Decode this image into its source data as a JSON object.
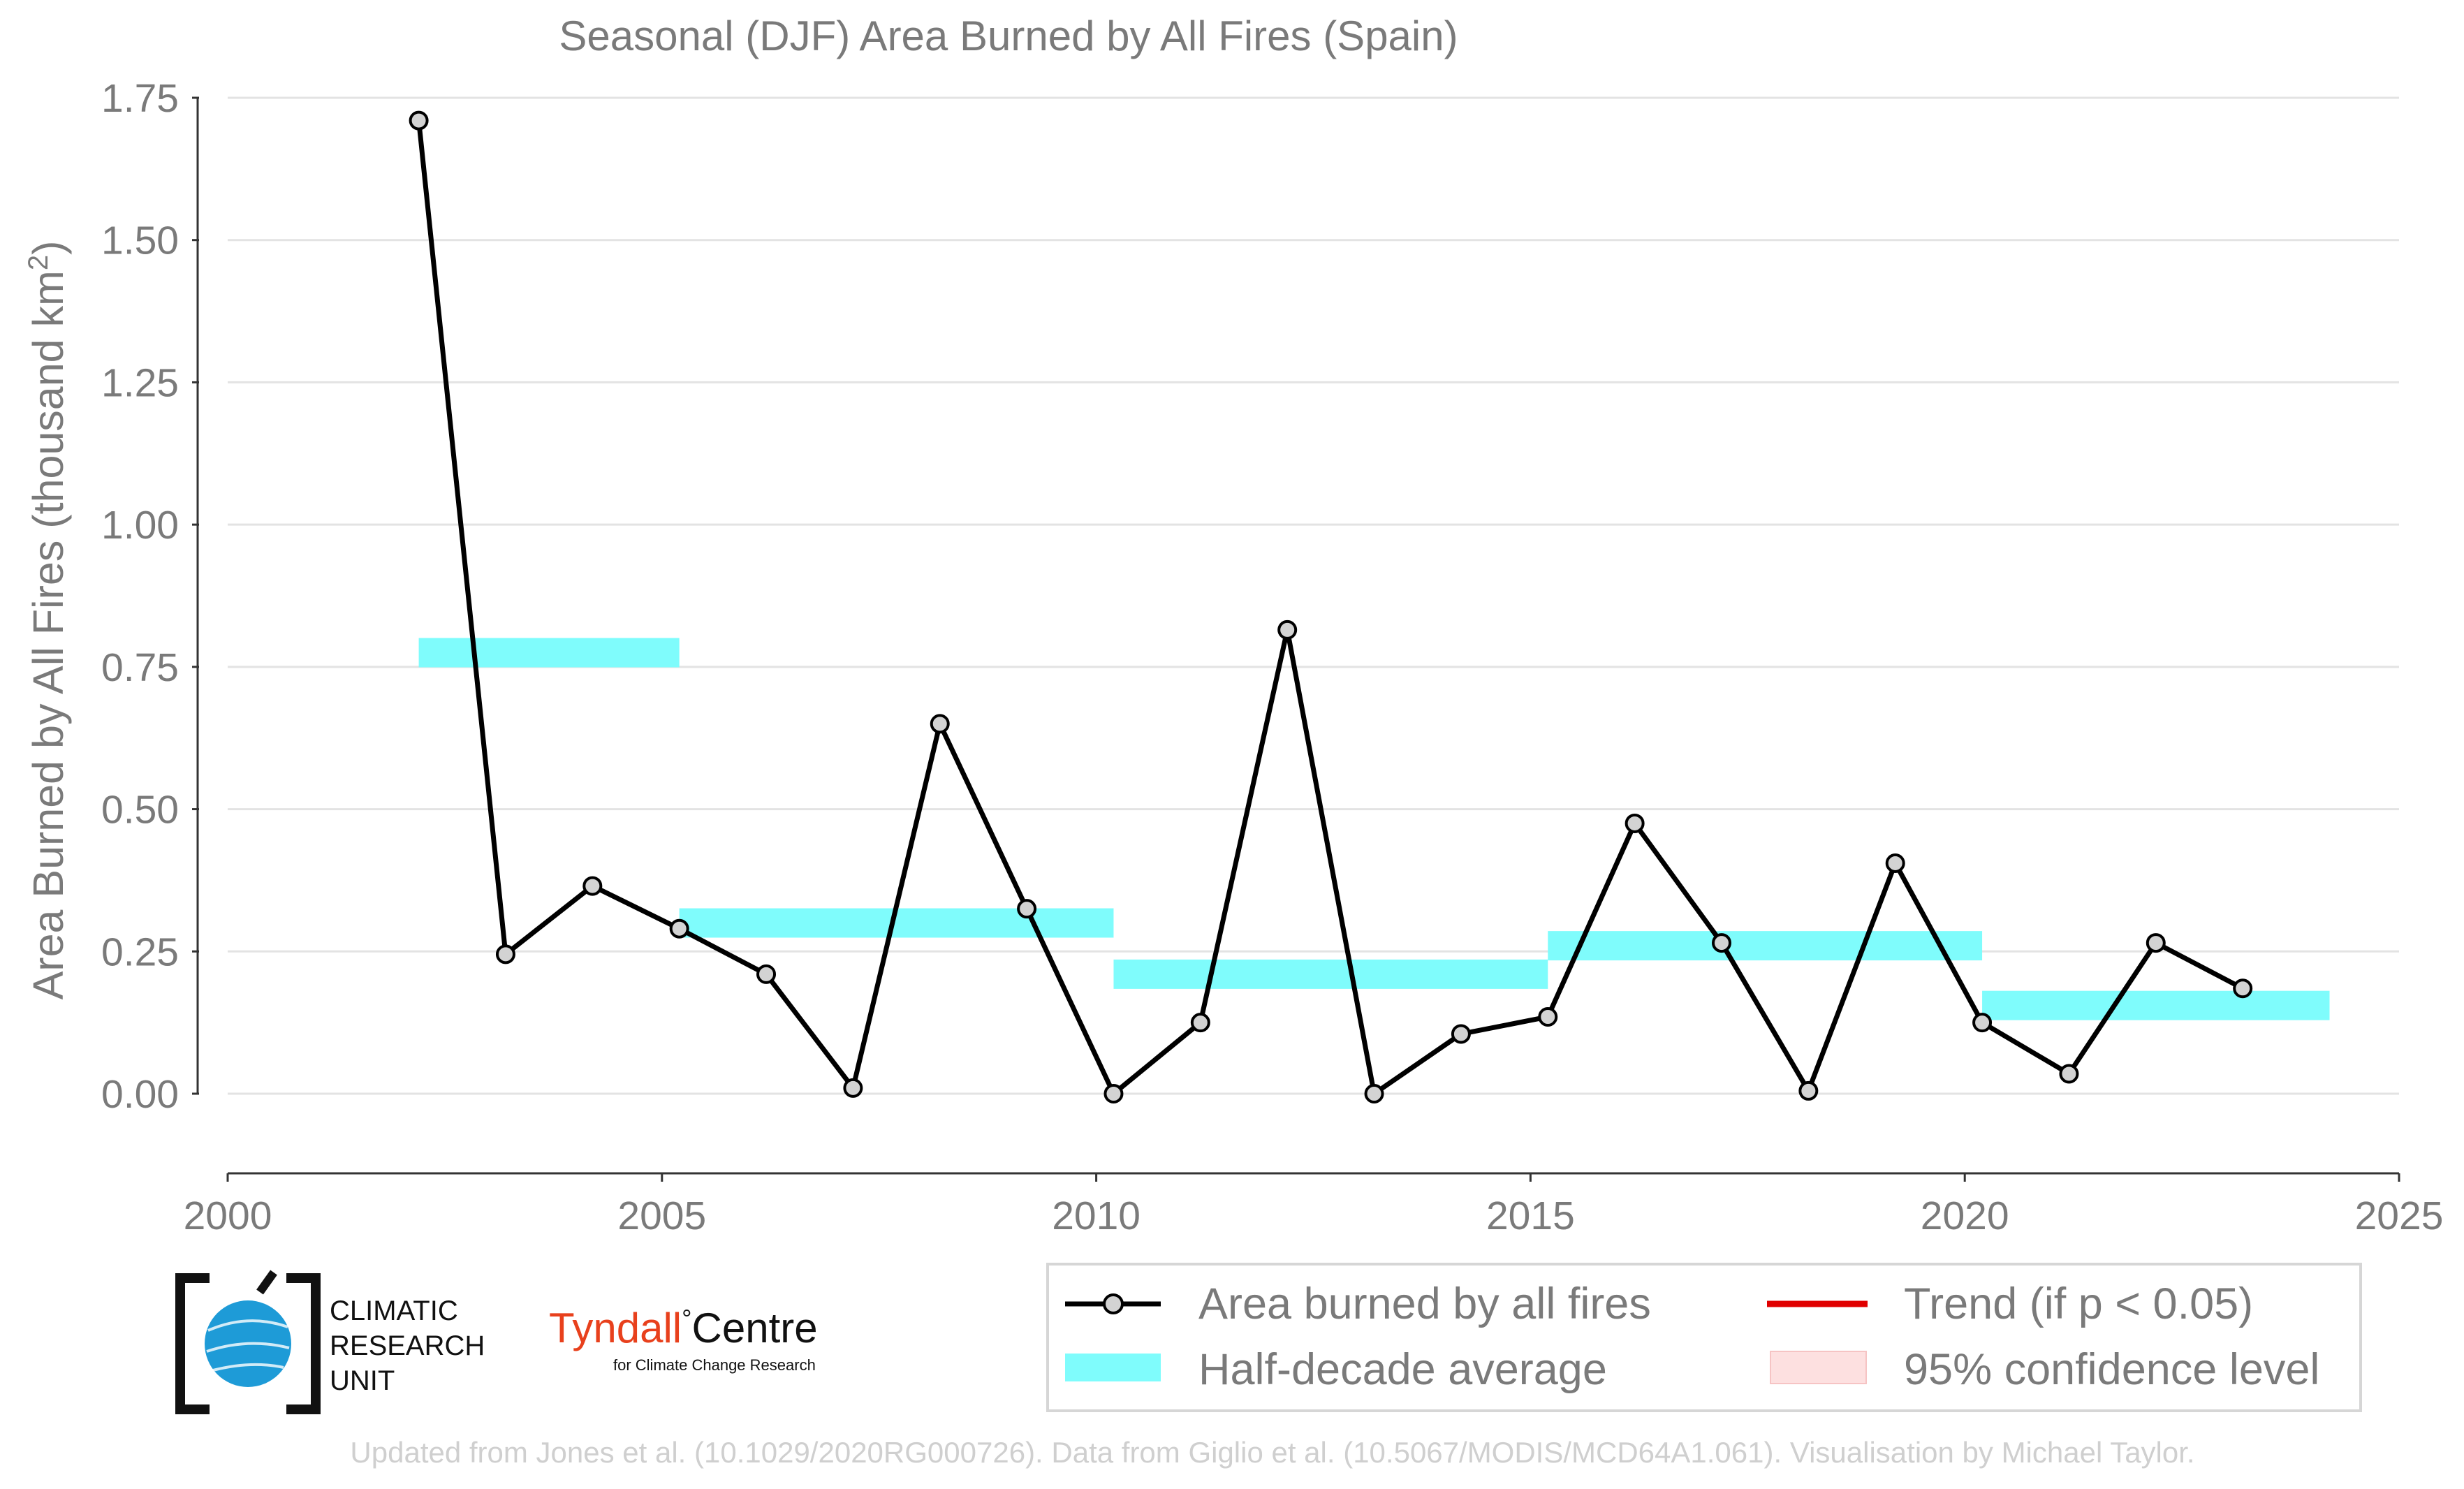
{
  "chart_data": {
    "type": "line",
    "title": "Seasonal (DJF) Area Burned by All Fires (Spain)",
    "xlabel": "",
    "ylabel": "Area Burned by All Fires (thousand km",
    "ylabel_sup": "2",
    "ylabel_close": ")",
    "xlim": [
      2000,
      2025
    ],
    "ylim": [
      -0.14,
      1.75
    ],
    "xticks": [
      2000,
      2005,
      2010,
      2015,
      2020,
      2025
    ],
    "yticks": [
      "0.00",
      "0.25",
      "0.50",
      "0.75",
      "1.00",
      "1.25",
      "1.50",
      "1.75"
    ],
    "grid": true,
    "legend_position": "bottom-right",
    "series": [
      {
        "name": "Area burned by all fires",
        "color": "#000000",
        "marker_color": "#d3d3d3",
        "points": [
          {
            "x": 2002,
            "y": 1.71
          },
          {
            "x": 2003,
            "y": 0.245
          },
          {
            "x": 2004,
            "y": 0.365
          },
          {
            "x": 2005,
            "y": 0.29
          },
          {
            "x": 2006,
            "y": 0.21
          },
          {
            "x": 2007,
            "y": 0.01
          },
          {
            "x": 2008,
            "y": 0.65
          },
          {
            "x": 2009,
            "y": 0.325
          },
          {
            "x": 2010,
            "y": 0.0
          },
          {
            "x": 2011,
            "y": 0.125
          },
          {
            "x": 2012,
            "y": 0.815
          },
          {
            "x": 2013,
            "y": 0.0
          },
          {
            "x": 2014,
            "y": 0.105
          },
          {
            "x": 2015,
            "y": 0.135
          },
          {
            "x": 2016,
            "y": 0.475
          },
          {
            "x": 2017,
            "y": 0.265
          },
          {
            "x": 2018,
            "y": 0.005
          },
          {
            "x": 2019,
            "y": 0.405
          },
          {
            "x": 2020,
            "y": 0.125
          },
          {
            "x": 2021,
            "y": 0.035
          },
          {
            "x": 2022,
            "y": 0.265
          },
          {
            "x": 2023,
            "y": 0.185
          }
        ]
      },
      {
        "name": "Half-decade average",
        "color": "#7ffcfc",
        "segments": [
          {
            "x0": 2002,
            "x1": 2005,
            "y": 0.775
          },
          {
            "x0": 2005,
            "x1": 2010,
            "y": 0.3
          },
          {
            "x0": 2010,
            "x1": 2015,
            "y": 0.21
          },
          {
            "x0": 2015,
            "x1": 2020,
            "y": 0.26
          },
          {
            "x0": 2020,
            "x1": 2024,
            "y": 0.155
          }
        ]
      }
    ],
    "legend": [
      {
        "label": "Area burned by all fires",
        "kind": "line-marker",
        "color": "#000000"
      },
      {
        "label": "Trend (if p < 0.05)",
        "kind": "line",
        "color": "#e00000"
      },
      {
        "label": "Half-decade average",
        "kind": "band",
        "color": "#7ffcfc"
      },
      {
        "label": "95% confidence level",
        "kind": "band",
        "color": "#fde0e0"
      }
    ]
  },
  "logos": {
    "cru": {
      "line1": "CLIMATIC",
      "line2": "RESEARCH",
      "line3": "UNIT"
    },
    "tyndall": {
      "name": "Tyndall",
      "degree": "°",
      "name2": "Centre",
      "tagline": "for Climate Change Research",
      "color": "#e8401c"
    }
  },
  "footer": "Updated from Jones et al. (10.1029/2020RG000726). Data from Giglio et al. (10.5067/MODIS/MCD64A1.061). Visualisation by Michael Taylor."
}
